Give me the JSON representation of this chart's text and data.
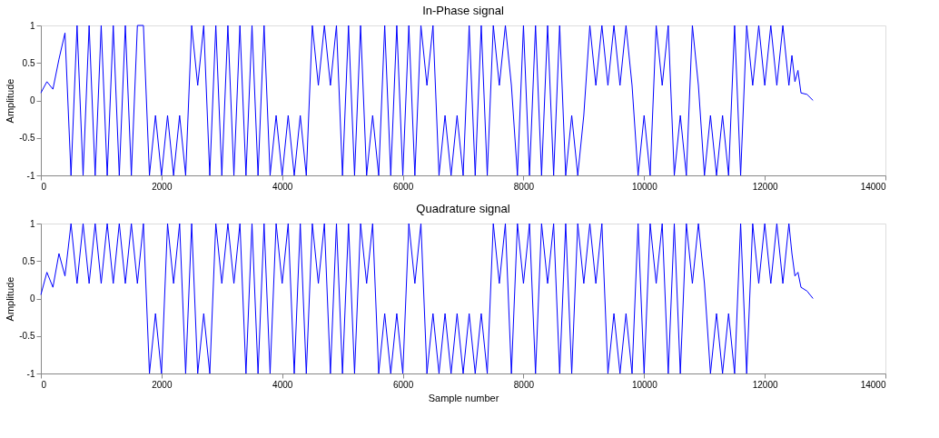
{
  "chart_data": [
    {
      "type": "line",
      "title": "In-Phase signal",
      "ylabel": "Amplitude",
      "xlim": [
        0,
        14000
      ],
      "xticks": [
        0,
        2000,
        4000,
        6000,
        8000,
        10000,
        12000,
        14000
      ],
      "ylim": [
        -1,
        1
      ],
      "yticks": [
        -1,
        -0.5,
        0,
        0.5,
        1
      ],
      "grid": false,
      "marker": "none",
      "line_style": "solid",
      "series": [
        {
          "color": "#0000ff",
          "x": [
            0,
            100,
            200,
            300,
            400,
            500,
            600,
            700,
            800,
            900,
            1000,
            1100,
            1200,
            1300,
            1400,
            1500,
            1600,
            1700,
            1800,
            1900,
            2000,
            2100,
            2200,
            2300,
            2400,
            2500,
            2600,
            2700,
            2800,
            2900,
            3000,
            3100,
            3200,
            3300,
            3400,
            3500,
            3600,
            3700,
            3800,
            3900,
            4000,
            4100,
            4200,
            4300,
            4400,
            4500,
            4600,
            4700,
            4800,
            4900,
            5000,
            5100,
            5200,
            5300,
            5400,
            5500,
            5600,
            5700,
            5800,
            5900,
            6000,
            6100,
            6200,
            6300,
            6400,
            6500,
            6600,
            6700,
            6800,
            6900,
            7000,
            7100,
            7200,
            7300,
            7400,
            7500,
            7600,
            7700,
            7800,
            7900,
            8000,
            8100,
            8200,
            8300,
            8400,
            8500,
            8600,
            8700,
            8800,
            8900,
            9000,
            9100,
            9200,
            9300,
            9400,
            9500,
            9600,
            9700,
            9800,
            9900,
            10000,
            10100,
            10200,
            10300,
            10400,
            10500,
            10600,
            10700,
            10800,
            10900,
            11000,
            11100,
            11200,
            11300,
            11400,
            11500,
            11600,
            11700,
            11800,
            11900,
            12000,
            12100,
            12200,
            12300,
            12400,
            12450,
            12500,
            12550,
            12600,
            12700,
            12800
          ],
          "values": [
            0.1,
            0.25,
            0.15,
            0.55,
            0.9,
            -1,
            1,
            -1,
            1,
            -1,
            1,
            -1,
            1,
            -1,
            1,
            -1,
            1,
            1,
            -1,
            -0.2,
            -1,
            -0.2,
            -1,
            -0.2,
            -1,
            1,
            0.2,
            1,
            -1,
            1,
            -1,
            1,
            -1,
            1,
            -1,
            1,
            -1,
            1,
            -1,
            -0.2,
            -1,
            -0.2,
            -1,
            -0.2,
            -1,
            1,
            0.2,
            1,
            0.2,
            1,
            -1,
            1,
            -1,
            1,
            -1,
            -0.2,
            -1,
            1,
            -1,
            1,
            -1,
            1,
            -1,
            1,
            0.2,
            1,
            -1,
            -0.2,
            -1,
            -0.2,
            -1,
            1,
            -1,
            1,
            -1,
            1,
            0.2,
            1,
            0.2,
            -1,
            1,
            -1,
            1,
            -1,
            1,
            -1,
            1,
            -1,
            -0.2,
            -1,
            -0.2,
            1,
            0.2,
            1,
            0.2,
            1,
            0.2,
            1,
            0.2,
            -1,
            -0.2,
            -1,
            1,
            0.2,
            1,
            -1,
            -0.2,
            -1,
            1,
            0.2,
            -1,
            -0.2,
            -1,
            -0.2,
            -1,
            1,
            -1,
            1,
            0.2,
            1,
            0.2,
            1,
            0.2,
            1,
            0.2,
            0.6,
            0.25,
            0.4,
            0.1,
            0.08,
            0
          ]
        }
      ]
    },
    {
      "type": "line",
      "title": "Quadrature signal",
      "xlabel": "Sample number",
      "ylabel": "Amplitude",
      "xlim": [
        0,
        14000
      ],
      "xticks": [
        0,
        2000,
        4000,
        6000,
        8000,
        10000,
        12000,
        14000
      ],
      "ylim": [
        -1,
        1
      ],
      "yticks": [
        -1,
        -0.5,
        0,
        0.5,
        1
      ],
      "grid": false,
      "marker": "none",
      "line_style": "solid",
      "series": [
        {
          "color": "#0000ff",
          "x": [
            0,
            100,
            200,
            300,
            400,
            500,
            600,
            700,
            800,
            900,
            1000,
            1100,
            1200,
            1300,
            1400,
            1500,
            1600,
            1700,
            1800,
            1900,
            2000,
            2100,
            2200,
            2300,
            2400,
            2500,
            2600,
            2700,
            2800,
            2900,
            3000,
            3100,
            3200,
            3300,
            3400,
            3500,
            3600,
            3700,
            3800,
            3900,
            4000,
            4100,
            4200,
            4300,
            4400,
            4500,
            4600,
            4700,
            4800,
            4900,
            5000,
            5100,
            5200,
            5300,
            5400,
            5500,
            5600,
            5700,
            5800,
            5900,
            6000,
            6100,
            6200,
            6300,
            6400,
            6500,
            6600,
            6700,
            6800,
            6900,
            7000,
            7100,
            7200,
            7300,
            7400,
            7500,
            7600,
            7700,
            7800,
            7900,
            8000,
            8100,
            8200,
            8300,
            8400,
            8500,
            8600,
            8700,
            8800,
            8900,
            9000,
            9100,
            9200,
            9300,
            9400,
            9500,
            9600,
            9700,
            9800,
            9900,
            10000,
            10100,
            10200,
            10300,
            10400,
            10500,
            10600,
            10700,
            10800,
            10900,
            11000,
            11100,
            11200,
            11300,
            11400,
            11500,
            11600,
            11700,
            11800,
            11900,
            12000,
            12100,
            12200,
            12300,
            12400,
            12450,
            12500,
            12550,
            12600,
            12700,
            12800
          ],
          "values": [
            0.05,
            0.35,
            0.15,
            0.6,
            0.3,
            1,
            0.2,
            1,
            0.2,
            1,
            0.2,
            1,
            0.2,
            1,
            0.2,
            1,
            0.2,
            1,
            -1,
            -0.2,
            -1,
            1,
            0.2,
            1,
            -1,
            1,
            -1,
            -0.2,
            -1,
            1,
            0.2,
            1,
            0.2,
            1,
            -1,
            1,
            -1,
            1,
            -1,
            1,
            0.2,
            1,
            -1,
            1,
            -1,
            1,
            0.2,
            1,
            -1,
            1,
            -1,
            1,
            -1,
            1,
            0.2,
            1,
            -1,
            -0.2,
            -1,
            -0.2,
            -1,
            1,
            0.2,
            1,
            -1,
            -0.2,
            -1,
            -0.2,
            -1,
            -0.2,
            -1,
            -0.2,
            -1,
            -0.2,
            -1,
            1,
            0.2,
            1,
            -1,
            1,
            0.2,
            1,
            -1,
            1,
            0.2,
            1,
            -1,
            1,
            -1,
            1,
            0.2,
            1,
            0.2,
            1,
            -1,
            -0.2,
            -1,
            -0.2,
            -1,
            1,
            -1,
            1,
            0.2,
            1,
            -1,
            1,
            -1,
            1,
            0.2,
            1,
            0.2,
            -1,
            -0.2,
            -1,
            -0.2,
            -1,
            1,
            -1,
            1,
            0.2,
            1,
            0.2,
            1,
            0.2,
            1,
            0.6,
            0.3,
            0.35,
            0.15,
            0.1,
            0
          ]
        }
      ]
    }
  ]
}
